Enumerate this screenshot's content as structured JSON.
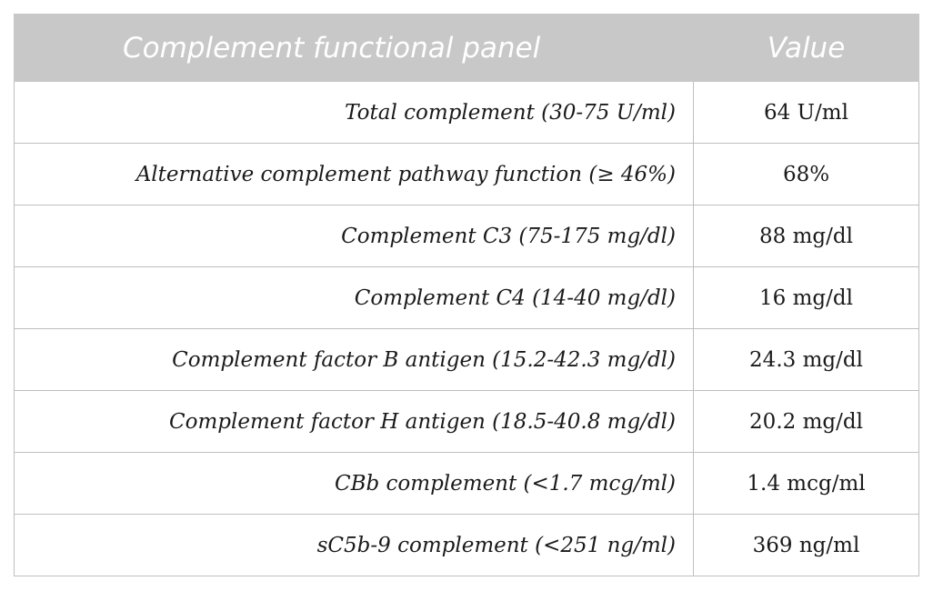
{
  "table": {
    "headers": [
      "Complement functional panel",
      "Value"
    ],
    "rows": [
      {
        "parameter": "Total complement (30-75 U/ml)",
        "value": "64 U/ml"
      },
      {
        "parameter": "Alternative complement pathway function (≥ 46%)",
        "value": "68%"
      },
      {
        "parameter": "Complement C3 (75-175 mg/dl)",
        "value": "88 mg/dl"
      },
      {
        "parameter": "Complement C4 (14-40 mg/dl)",
        "value": "16 mg/dl"
      },
      {
        "parameter": "Complement factor B antigen (15.2-42.3 mg/dl)",
        "value": "24.3 mg/dl"
      },
      {
        "parameter": "Complement factor H antigen (18.5-40.8 mg/dl)",
        "value": "20.2 mg/dl"
      },
      {
        "parameter": "CBb complement (<1.7 mcg/ml)",
        "value": "1.4 mcg/ml"
      },
      {
        "parameter": "sC5b-9 complement (<251 ng/ml)",
        "value": "369 ng/ml"
      }
    ]
  }
}
